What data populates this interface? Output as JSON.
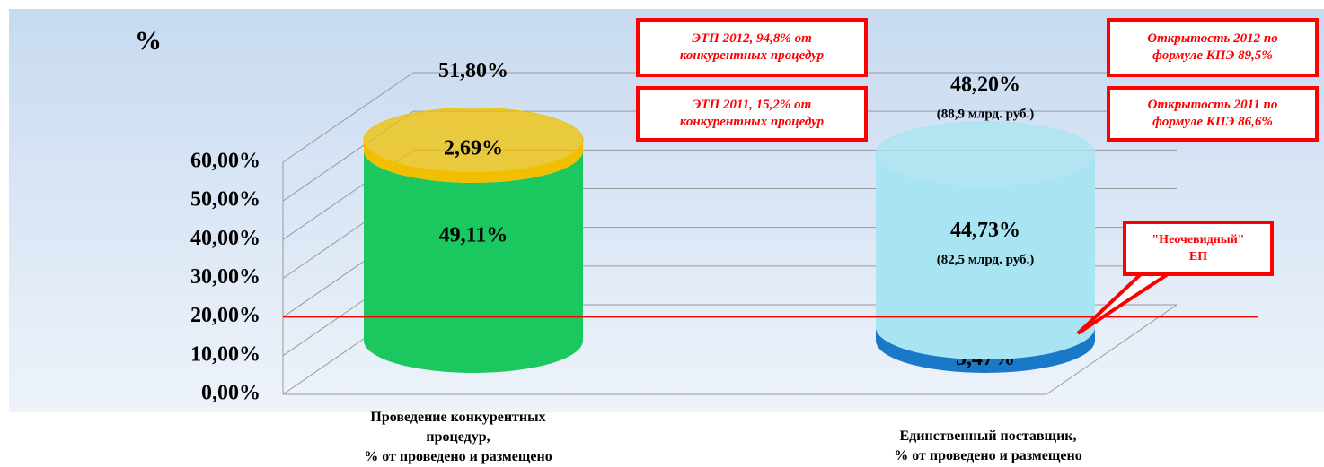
{
  "chart_data": {
    "type": "cylinder_stack",
    "axis_label": "%",
    "categories": [
      "Проведение конкурентных\nпроцедур,\n%  от проведено и размещено",
      "Единственный поставщик,\n% от проведено и размещено"
    ],
    "series": [
      {
        "colors": [
          "#1bc860",
          "#1a78c8"
        ],
        "values": [
          49.11,
          3.47
        ],
        "value_labels": [
          "49,11%",
          "3,47%"
        ]
      },
      {
        "colors": [
          "#f0c000",
          "#a8e4f2"
        ],
        "values": [
          2.69,
          44.73
        ],
        "value_labels": [
          "2,69%",
          "44,73%"
        ]
      }
    ],
    "totals": [
      51.8,
      48.2
    ],
    "total_labels": [
      "51,80%",
      "48,20%"
    ],
    "notes": [
      "",
      "(88,9 млрд. руб.)"
    ],
    "segment_notes": [
      "",
      "(82,5 млрд. руб.)"
    ],
    "ylim": [
      0,
      60
    ],
    "yticks": [
      {
        "value": 0,
        "label": "0,00%"
      },
      {
        "value": 10,
        "label": "10,00%"
      },
      {
        "value": 20,
        "label": "20,00%"
      },
      {
        "value": 30,
        "label": "30,00%"
      },
      {
        "value": 40,
        "label": "40,00%"
      },
      {
        "value": 50,
        "label": "50,00%"
      },
      {
        "value": 60,
        "label": "60,00%"
      }
    ],
    "grid": true,
    "reference_line": {
      "value": 20,
      "color": "#ff0000"
    },
    "annotations": [
      "ЭТП  2012, 94,8% от\nконкурентных процедур",
      "ЭТП 2011, 15,2% от\nконкурентных процедур",
      "Открытость 2012 по\nформуле КПЭ 89,5%",
      "Открытость 2011 по\nформуле КПЭ 86,6%",
      "\"Неочевидный\"\nЕП"
    ]
  }
}
